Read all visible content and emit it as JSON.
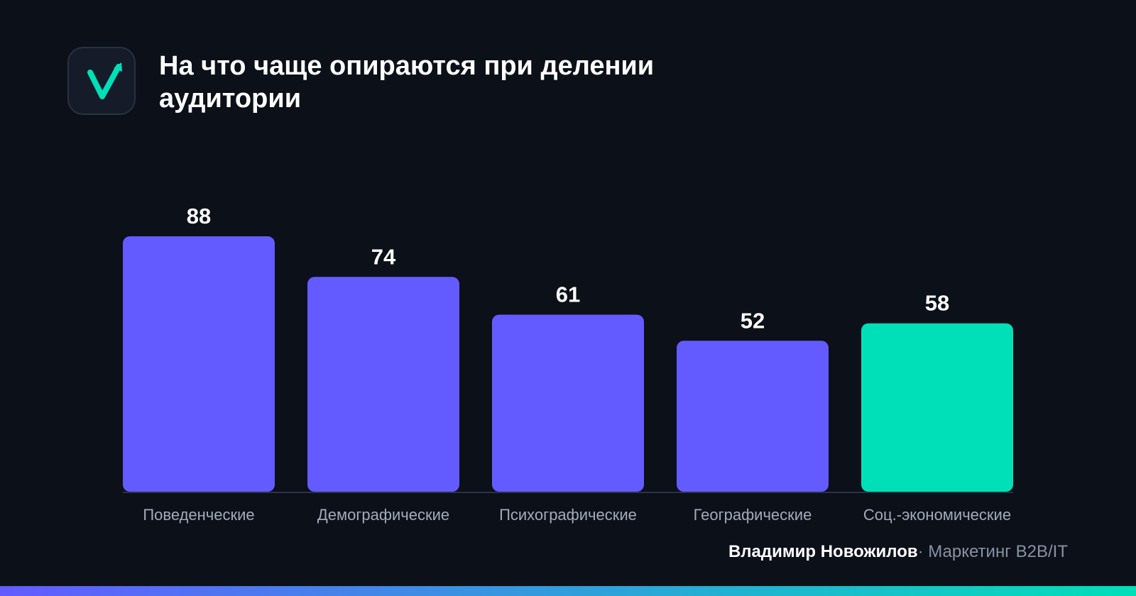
{
  "header": {
    "logo_icon": "checkmark-arrow-logo-icon",
    "title": "На что чаще опираются при делении аудитории"
  },
  "chart_data": {
    "type": "bar",
    "categories": [
      "Поведенческие",
      "Демографические",
      "Психографические",
      "Географические",
      "Соц.-экономические"
    ],
    "values": [
      88,
      74,
      61,
      52,
      58
    ],
    "highlight_index": 4,
    "title": "На что чаще опираются при делении аудитории",
    "xlabel": "",
    "ylabel": "",
    "ylim": [
      0,
      88
    ],
    "grid": false,
    "legend": "none",
    "colors": {
      "bar": "#635bff",
      "highlight": "#00e0b8",
      "label": "#a4aab8",
      "value": "#ffffff",
      "axis": "#2c3346"
    }
  },
  "footer": {
    "author": "Владимир Новожилов",
    "separator": "·",
    "org": "Маркетинг B2B/IT"
  },
  "colors": {
    "background": "#0b1019",
    "accent": "#00e0b8",
    "gradient_start": "#635bff",
    "gradient_end": "#00e0b8"
  }
}
